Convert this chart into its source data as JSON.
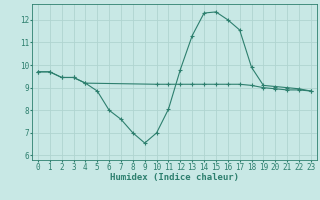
{
  "line1_x": [
    0,
    1,
    2,
    3,
    4,
    10,
    11,
    12,
    13,
    14,
    15,
    16,
    17,
    18,
    19,
    20,
    21,
    22,
    23
  ],
  "line1_y": [
    9.7,
    9.7,
    9.45,
    9.45,
    9.2,
    9.15,
    9.15,
    9.15,
    9.15,
    9.15,
    9.15,
    9.15,
    9.15,
    9.1,
    9.0,
    8.95,
    8.9,
    8.9,
    8.85
  ],
  "line2_x": [
    0,
    1,
    2,
    3,
    4,
    5,
    6,
    7,
    8,
    9,
    10,
    11,
    12,
    13,
    14,
    15,
    16,
    17,
    18,
    19,
    20,
    21,
    22,
    23
  ],
  "line2_y": [
    9.7,
    9.7,
    9.45,
    9.45,
    9.2,
    8.85,
    8.0,
    7.6,
    7.0,
    6.55,
    7.0,
    8.05,
    9.8,
    11.3,
    12.3,
    12.35,
    12.0,
    11.55,
    9.9,
    9.1,
    9.05,
    9.0,
    8.95,
    8.85
  ],
  "line_color": "#2d7f6e",
  "bg_color": "#c8e8e5",
  "grid_color": "#b0d4d0",
  "xlabel": "Humidex (Indice chaleur)",
  "xlim": [
    -0.5,
    23.5
  ],
  "ylim": [
    5.8,
    12.7
  ],
  "yticks": [
    6,
    7,
    8,
    9,
    10,
    11,
    12
  ],
  "xticks": [
    0,
    1,
    2,
    3,
    4,
    5,
    6,
    7,
    8,
    9,
    10,
    11,
    12,
    13,
    14,
    15,
    16,
    17,
    18,
    19,
    20,
    21,
    22,
    23
  ],
  "tick_fontsize": 5.5,
  "xlabel_fontsize": 6.5
}
